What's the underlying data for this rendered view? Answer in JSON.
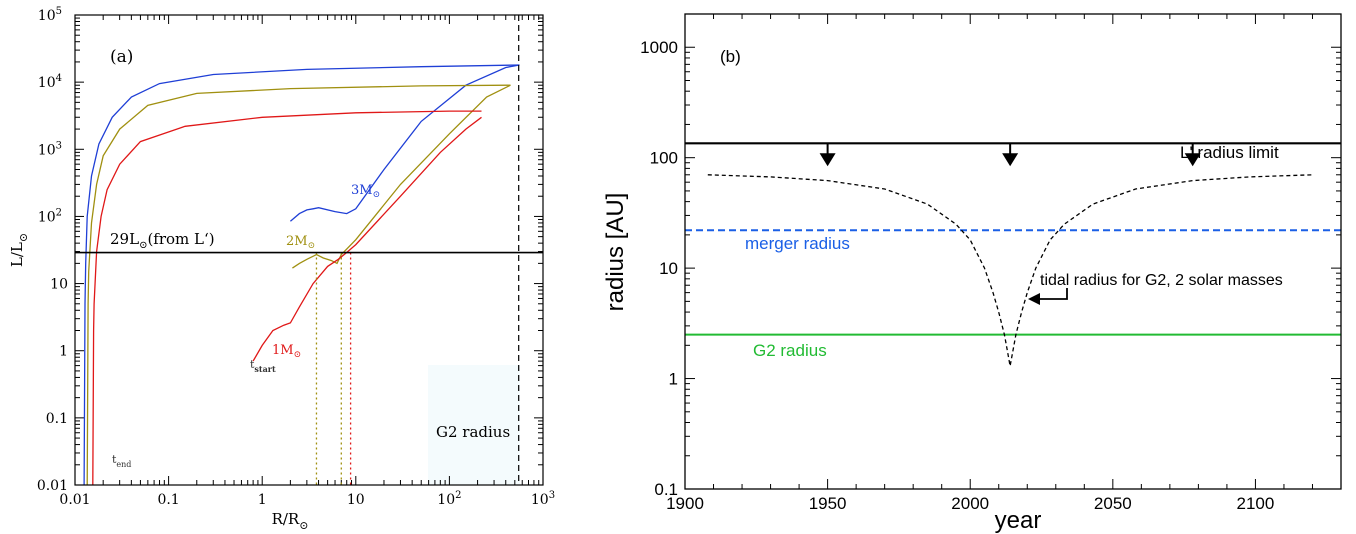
{
  "chart_data": [
    {
      "type": "line",
      "panel_label": "(a)",
      "xlabel": "R/R",
      "xlabel_sub": "⊙",
      "ylabel": "L/L",
      "ylabel_sub": "⊙",
      "xscale": "log",
      "yscale": "log",
      "xlim": [
        0.01,
        1000
      ],
      "ylim": [
        0.01,
        100000
      ],
      "x_ticks": [
        {
          "v": 0.01,
          "label": "0.01",
          "exp": ""
        },
        {
          "v": 0.1,
          "label": "0.1",
          "exp": ""
        },
        {
          "v": 1,
          "label": "1",
          "exp": ""
        },
        {
          "v": 10,
          "label": "10",
          "exp": ""
        },
        {
          "v": 100,
          "label": "10",
          "exp": "2"
        },
        {
          "v": 1000,
          "label": "10",
          "exp": "3"
        }
      ],
      "y_ticks": [
        {
          "v": 0.01,
          "label": "0.01",
          "exp": ""
        },
        {
          "v": 0.1,
          "label": "0.1",
          "exp": ""
        },
        {
          "v": 1,
          "label": "1",
          "exp": ""
        },
        {
          "v": 10,
          "label": "10",
          "exp": ""
        },
        {
          "v": 100,
          "label": "10",
          "exp": "2"
        },
        {
          "v": 1000,
          "label": "10",
          "exp": "3"
        },
        {
          "v": 10000,
          "label": "10",
          "exp": "4"
        },
        {
          "v": 100000,
          "label": "10",
          "exp": "5"
        }
      ],
      "hline": {
        "y": 29,
        "label_pre": "29L",
        "label_sub": "⊙",
        "label_post": "(from L‘)"
      },
      "vline": {
        "x": 550
      },
      "series": [
        {
          "name": "3M⊙",
          "label_main": "3M",
          "label_sub": "⊙",
          "color": "#1f3fd6",
          "branches": [
            [
              [
                0.0125,
                0.01
              ],
              [
                0.0128,
                5
              ],
              [
                0.013,
                20
              ],
              [
                0.0135,
                100
              ],
              [
                0.015,
                400
              ],
              [
                0.018,
                1200
              ],
              [
                0.025,
                3000
              ],
              [
                0.04,
                6000
              ],
              [
                0.08,
                9500
              ],
              [
                0.3,
                13000
              ],
              [
                3,
                15500
              ],
              [
                50,
                17000
              ],
              [
                560,
                18000
              ]
            ],
            [
              [
                2,
                85
              ],
              [
                2.5,
                110
              ],
              [
                3,
                125
              ],
              [
                3.5,
                130
              ],
              [
                4,
                135
              ],
              [
                6,
                118
              ],
              [
                8,
                110
              ],
              [
                10,
                130
              ],
              [
                20,
                500
              ],
              [
                50,
                2600
              ],
              [
                150,
                9000
              ],
              [
                400,
                16500
              ],
              [
                560,
                18000
              ]
            ]
          ]
        },
        {
          "name": "2M⊙",
          "label_main": "2M",
          "label_sub": "⊙",
          "color": "#a09010",
          "branches": [
            [
              [
                0.0135,
                0.01
              ],
              [
                0.0138,
                5
              ],
              [
                0.014,
                15
              ],
              [
                0.015,
                80
              ],
              [
                0.017,
                300
              ],
              [
                0.02,
                800
              ],
              [
                0.03,
                2000
              ],
              [
                0.06,
                4500
              ],
              [
                0.2,
                6800
              ],
              [
                2,
                8000
              ],
              [
                50,
                8800
              ],
              [
                450,
                9000
              ]
            ],
            [
              [
                2.1,
                17
              ],
              [
                2.5,
                20
              ],
              [
                3,
                23
              ],
              [
                3.8,
                27
              ],
              [
                4.5,
                24
              ],
              [
                5.5,
                22
              ],
              [
                6.3,
                20
              ],
              [
                7,
                27
              ],
              [
                10,
                45
              ],
              [
                30,
                300
              ],
              [
                100,
                1700
              ],
              [
                250,
                6000
              ],
              [
                450,
                9000
              ]
            ]
          ]
        },
        {
          "name": "1M⊙",
          "label_main": "1M",
          "label_sub": "⊙",
          "color": "#e01818",
          "branches": [
            [
              [
                0.0155,
                0.01
              ],
              [
                0.0158,
                2
              ],
              [
                0.016,
                5
              ],
              [
                0.017,
                30
              ],
              [
                0.019,
                100
              ],
              [
                0.022,
                250
              ],
              [
                0.03,
                600
              ],
              [
                0.05,
                1300
              ],
              [
                0.15,
                2200
              ],
              [
                1,
                3000
              ],
              [
                10,
                3500
              ],
              [
                100,
                3700
              ],
              [
                220,
                3700
              ]
            ],
            [
              [
                0.8,
                0.7
              ],
              [
                1,
                1.2
              ],
              [
                1.3,
                2
              ],
              [
                1.7,
                2.4
              ],
              [
                2,
                2.6
              ],
              [
                2.5,
                4.5
              ],
              [
                3.5,
                10
              ],
              [
                5,
                18
              ],
              [
                6.5,
                23
              ],
              [
                8,
                29
              ],
              [
                10,
                38
              ],
              [
                30,
                200
              ],
              [
                80,
                900
              ],
              [
                150,
                2000
              ],
              [
                220,
                3000
              ]
            ]
          ]
        }
      ],
      "drops": [
        {
          "x": 3.8,
          "y": 29,
          "color": "#a09010"
        },
        {
          "x": 7.0,
          "y": 29,
          "color": "#a09010"
        },
        {
          "x": 8.8,
          "y": 29,
          "color": "#e01818"
        }
      ],
      "annotations": {
        "t_start_main": "t",
        "t_start_sub": "start",
        "t_end_main": "t",
        "t_end_sub": "end",
        "g2_radius": "G2 radius"
      }
    },
    {
      "type": "line",
      "panel_label": "(b)",
      "xlabel": "year",
      "ylabel": "radius [AU]",
      "yscale": "log",
      "xlim": [
        1900,
        2130
      ],
      "ylim": [
        0.1,
        2000
      ],
      "x_ticks": [
        1900,
        1950,
        2000,
        2050,
        2100
      ],
      "y_ticks": [
        {
          "v": 0.1,
          "label": "0.1"
        },
        {
          "v": 1,
          "label": "1"
        },
        {
          "v": 10,
          "label": "10"
        },
        {
          "v": 100,
          "label": "100"
        },
        {
          "v": 1000,
          "label": "1000"
        }
      ],
      "lines": [
        {
          "name": "L' radius limit",
          "y": 135,
          "color": "#000000",
          "style": "solid"
        },
        {
          "name": "merger radius",
          "y": 22,
          "color": "#1a5fe6",
          "style": "dashed"
        },
        {
          "name": "G2 radius",
          "y": 2.5,
          "color": "#22bb33",
          "style": "solid"
        }
      ],
      "arrows_x": [
        1950,
        2014,
        2078
      ],
      "tidal_label": "tidal radius for G2, 2 solar masses",
      "tidal_min_year": 2014,
      "tidal_curve": [
        [
          1908,
          70
        ],
        [
          1930,
          67
        ],
        [
          1950,
          62
        ],
        [
          1970,
          52
        ],
        [
          1985,
          38
        ],
        [
          1995,
          25
        ],
        [
          2000,
          18
        ],
        [
          2005,
          10
        ],
        [
          2008,
          6
        ],
        [
          2010,
          4
        ],
        [
          2012,
          2.5
        ],
        [
          2013,
          1.8
        ],
        [
          2014,
          1.3
        ],
        [
          2015,
          1.8
        ],
        [
          2016,
          2.5
        ],
        [
          2018,
          4
        ],
        [
          2020,
          6
        ],
        [
          2023,
          10
        ],
        [
          2028,
          18
        ],
        [
          2033,
          25
        ],
        [
          2043,
          38
        ],
        [
          2058,
          52
        ],
        [
          2078,
          62
        ],
        [
          2098,
          67
        ],
        [
          2120,
          70
        ]
      ]
    }
  ]
}
